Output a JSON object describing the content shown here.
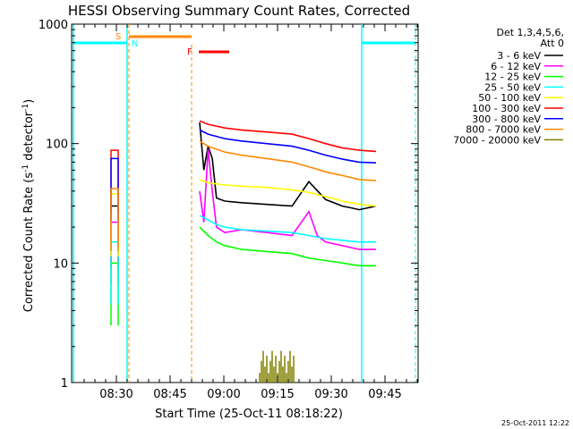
{
  "chart_data": {
    "type": "line",
    "title": "HESSI Observing Summary Count Rates, Corrected",
    "xlabel": "Start Time (25-Oct-11 08:18:22)",
    "ylabel": "Corrected Count Rate (s⁻¹ detector⁻¹)",
    "ylabel_parts": [
      "Corrected Count Rate (s",
      "-1",
      " detector",
      "-1",
      ")"
    ],
    "yscale": "log",
    "ylim": [
      1,
      1000
    ],
    "xlim_minutes": [
      18.37,
      80.5
    ],
    "x_ticks": [
      {
        "minute": 30,
        "label": "08:30"
      },
      {
        "minute": 45,
        "label": "08:45"
      },
      {
        "minute": 60,
        "label": "09:00"
      },
      {
        "minute": 75,
        "label": "09:15"
      },
      {
        "minute": 90,
        "label": "09:30"
      },
      {
        "minute": 105,
        "label": "09:45"
      }
    ],
    "y_ticks": [
      {
        "value": 1,
        "label": "1"
      },
      {
        "value": 10,
        "label": "10"
      },
      {
        "value": 100,
        "label": "100"
      },
      {
        "value": 1000,
        "label": "1000"
      }
    ],
    "legend_title": [
      "Det 1,3,4,5,6,",
      "Att 0"
    ],
    "legend_position": "right",
    "footer_date": "25-Oct-2011 12:22",
    "series": [
      {
        "name": "3 - 6 keV",
        "color": "#000000",
        "x": [
          26.0,
          28.0,
          34.0,
          35.0,
          36.0,
          37.0,
          38.0,
          40.0,
          44.0,
          50.0,
          56.0,
          60.0,
          64.0,
          68.0,
          70.0,
          72.0,
          76.0
        ],
        "y": [
          null,
          null,
          150,
          60,
          95,
          75,
          35,
          33,
          32,
          31,
          30,
          48,
          34,
          30,
          29,
          28,
          30
        ]
      },
      {
        "name": "6 - 12 keV",
        "color": "#ff00ff",
        "x": [
          26.0,
          28.0,
          34.0,
          35.0,
          36.0,
          37.0,
          38.0,
          40.0,
          44.0,
          50.0,
          56.0,
          60.0,
          62.0,
          64.0,
          68.0,
          72.0,
          76.0
        ],
        "y": [
          null,
          null,
          40,
          22,
          90,
          40,
          20,
          18,
          19,
          18,
          17,
          27,
          17,
          15,
          14,
          13,
          13
        ]
      },
      {
        "name": "12 - 25 keV",
        "color": "#00ff00",
        "x": [
          34.0,
          36.0,
          38.0,
          40.0,
          44.0,
          50.0,
          56.0,
          60.0,
          64.0,
          68.0,
          72.0,
          76.0
        ],
        "y": [
          20,
          17,
          15,
          14,
          13,
          12.5,
          12,
          11,
          10.5,
          10,
          9.5,
          9.5
        ]
      },
      {
        "name": "25 - 50 keV",
        "color": "#00ffff",
        "x": [
          34.0,
          36.0,
          38.0,
          40.0,
          44.0,
          50.0,
          56.0,
          60.0,
          64.0,
          68.0,
          72.0,
          76.0
        ],
        "y": [
          25,
          23,
          21,
          20,
          19,
          18.5,
          18,
          17,
          16,
          15.5,
          15,
          15
        ]
      },
      {
        "name": "50 - 100 keV",
        "color": "#ffff00",
        "x": [
          34.0,
          36.0,
          40.0,
          44.0,
          50.0,
          56.0,
          60.0,
          64.0,
          68.0,
          72.0,
          76.0
        ],
        "y": [
          50,
          47,
          45,
          44,
          43,
          41,
          39,
          36,
          33,
          31,
          30
        ]
      },
      {
        "name": "100 - 300 keV",
        "color": "#ff0000",
        "x": [
          34.0,
          36.0,
          40.0,
          44.0,
          50.0,
          56.0,
          60.0,
          64.0,
          68.0,
          72.0,
          76.0
        ],
        "y": [
          155,
          145,
          135,
          130,
          125,
          120,
          110,
          100,
          92,
          88,
          86
        ]
      },
      {
        "name": "300 - 800 keV",
        "color": "#0000ff",
        "x": [
          34.0,
          36.0,
          40.0,
          44.0,
          50.0,
          56.0,
          60.0,
          64.0,
          68.0,
          72.0,
          76.0
        ],
        "y": [
          130,
          120,
          110,
          105,
          100,
          95,
          88,
          80,
          74,
          70,
          69
        ]
      },
      {
        "name": "800 - 7000 keV",
        "color": "#ff8800",
        "x": [
          34.0,
          36.0,
          40.0,
          44.0,
          50.0,
          56.0,
          60.0,
          64.0,
          68.0,
          72.0,
          76.0
        ],
        "y": [
          105,
          95,
          85,
          80,
          75,
          70,
          64,
          58,
          54,
          50,
          49
        ]
      },
      {
        "name": "7000 - 20000 keV",
        "color": "#808000",
        "x": [
          48.0,
          49.0,
          50.0,
          51.0,
          52.0,
          53.0,
          54.0,
          55.0,
          56.0
        ],
        "y": [
          1.8,
          1.2,
          2.0,
          1.4,
          2.0,
          1.3,
          1.9,
          1.5,
          1.6
        ]
      }
    ],
    "annotations": [
      {
        "label": "S",
        "color": "#ff8800"
      },
      {
        "label": "N",
        "color": "#00ffff"
      },
      {
        "label": "F",
        "color": "#ff0000"
      }
    ]
  }
}
